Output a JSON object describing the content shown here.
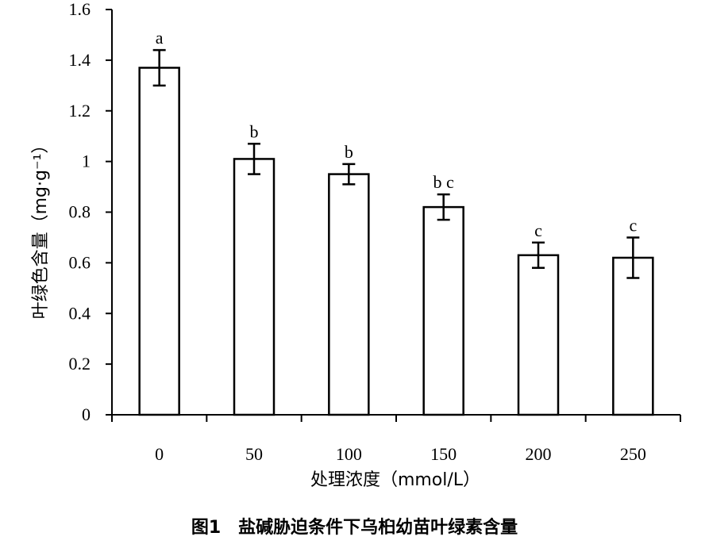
{
  "caption": "图1　盐碱胁迫条件下乌桕幼苗叶绿素含量",
  "chart_data": {
    "type": "bar",
    "title": "",
    "xlabel": "处理浓度（mmol/L）",
    "ylabel": "叶绿色含量（mg·g⁻¹）",
    "ylim": [
      0,
      1.6
    ],
    "yticks": [
      "0",
      "0.2",
      "0.4",
      "0.6",
      "0.8",
      "1",
      "1.2",
      "1.4",
      "1.6"
    ],
    "ytick_values": [
      0,
      0.2,
      0.4,
      0.6,
      0.8,
      1.0,
      1.2,
      1.4,
      1.6
    ],
    "categories": [
      "0",
      "50",
      "100",
      "150",
      "200",
      "250"
    ],
    "values": [
      1.37,
      1.01,
      0.95,
      0.82,
      0.63,
      0.62
    ],
    "errors": [
      0.07,
      0.06,
      0.04,
      0.05,
      0.05,
      0.08
    ],
    "significance": [
      "a",
      "b",
      "b",
      "b c",
      "c",
      "c"
    ],
    "grid": false,
    "colors": {
      "bar_fill": "#ffffff",
      "bar_stroke": "#000000",
      "axis": "#000000"
    }
  }
}
